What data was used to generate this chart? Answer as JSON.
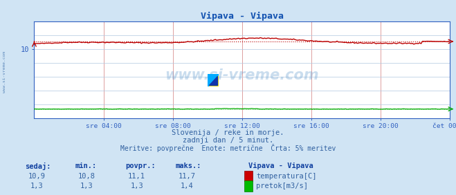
{
  "title": "Vipava - Vipava",
  "fig_bg_color": "#d0e4f4",
  "plot_bg_color": "#ffffff",
  "x_labels": [
    "sre 04:00",
    "sre 08:00",
    "sre 12:00",
    "sre 16:00",
    "sre 20:00",
    "čet 00:00"
  ],
  "x_tick_norm": [
    0.1667,
    0.3333,
    0.5,
    0.6667,
    0.8333,
    1.0
  ],
  "ylim": [
    0,
    14
  ],
  "ytick_val": 10,
  "vgrid_color": "#dda0a0",
  "hgrid_color": "#b0c8e0",
  "temp_color": "#bb0000",
  "pretok_color": "#00aa00",
  "avg_linestyle": "dotted",
  "temp_avg": 11.1,
  "pretok_avg": 1.3,
  "subtitle1": "Slovenija / reke in morje.",
  "subtitle2": "zadnji dan / 5 minut.",
  "subtitle3": "Meritve: povprečne  Enote: metrične  Črta: 5% meritev",
  "legend_title": "Vipava - Vipava",
  "legend_temp": "temperatura[C]",
  "legend_pretok": "pretok[m3/s]",
  "watermark": "www.si-vreme.com",
  "col_headers": [
    "sedaj:",
    "min.:",
    "povpr.:",
    "maks.:"
  ],
  "temp_row": [
    "10,9",
    "10,8",
    "11,1",
    "11,7"
  ],
  "pretok_row": [
    "1,3",
    "1,3",
    "1,3",
    "1,4"
  ],
  "text_color": "#3060a0",
  "header_color": "#1040a0",
  "title_color": "#1050b0",
  "axis_color": "#3060c0",
  "left_watermark": "www.si-vreme.com",
  "temp_color_box": "#cc0000",
  "pretok_color_box": "#00bb00"
}
